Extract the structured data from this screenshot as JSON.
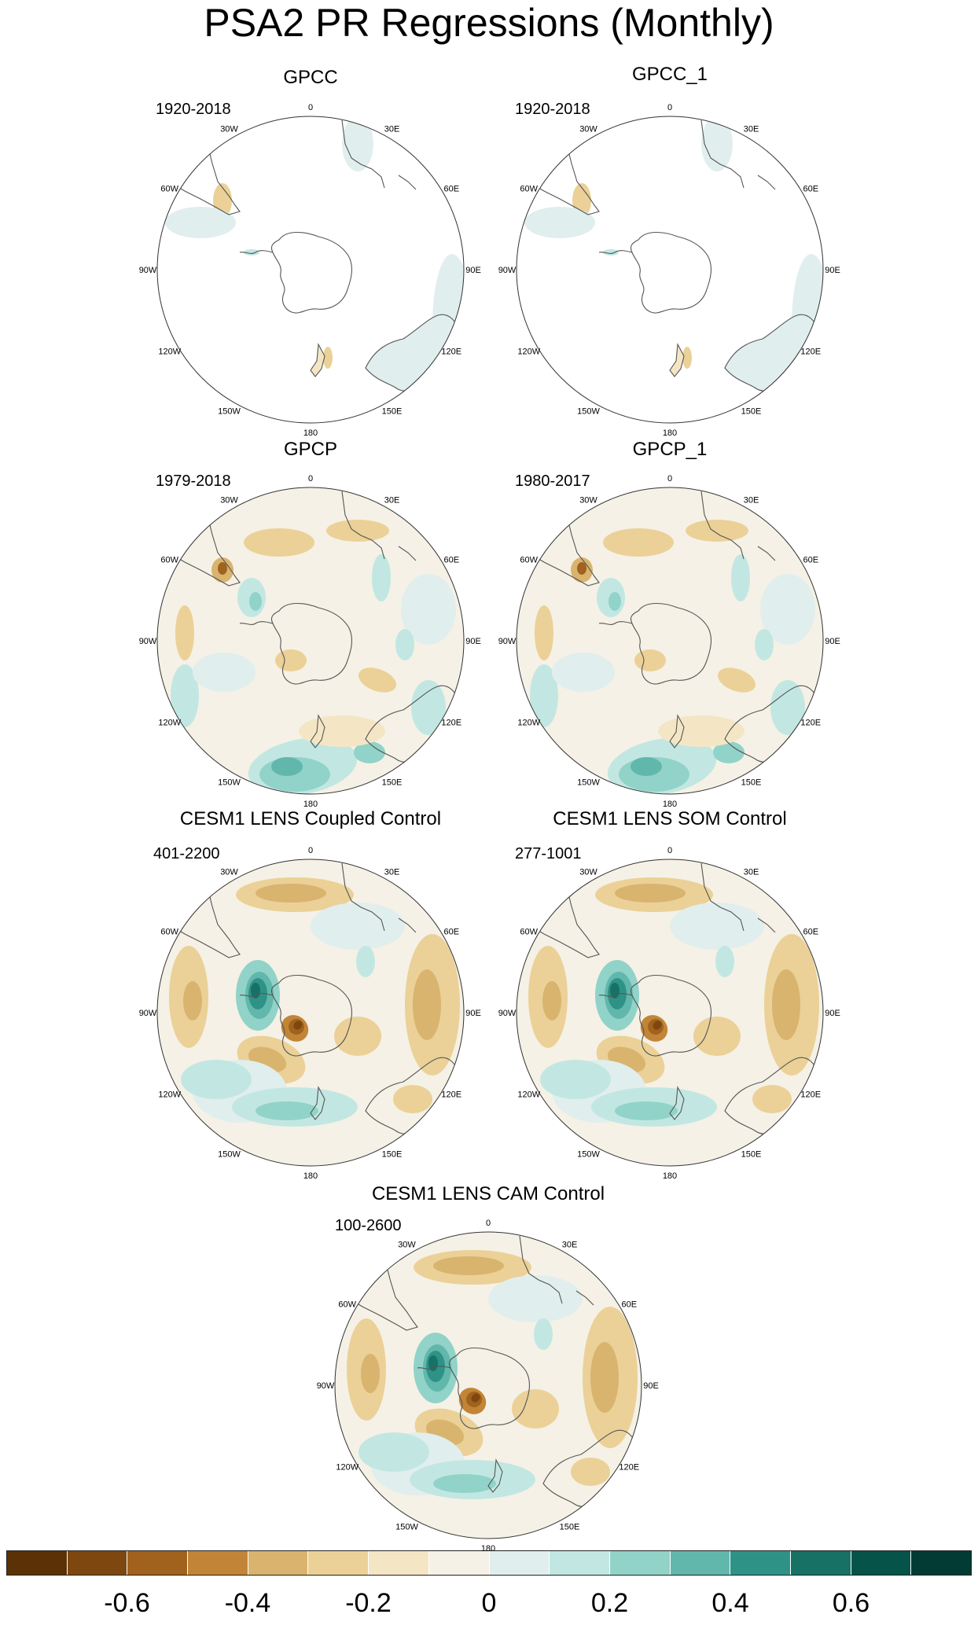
{
  "title": "PSA2 PR Regressions (Monthly)",
  "lon_labels": [
    "0",
    "30E",
    "60E",
    "90E",
    "120E",
    "150E",
    "180",
    "150W",
    "120W",
    "90W",
    "60W",
    "30W"
  ],
  "panels": [
    {
      "title": "GPCC",
      "period": "1920-2018",
      "style": "land"
    },
    {
      "title": "GPCC_1",
      "period": "1920-2018",
      "style": "land"
    },
    {
      "title": "GPCP",
      "period": "1979-2018",
      "style": "obs"
    },
    {
      "title": "GPCP_1",
      "period": "1980-2017",
      "style": "obs"
    },
    {
      "title": "CESM1 LENS Coupled Control",
      "period": "401-2200",
      "style": "model"
    },
    {
      "title": "CESM1 LENS SOM Control",
      "period": "277-1001",
      "style": "model"
    },
    {
      "title": "CESM1 LENS CAM Control",
      "period": "100-2600",
      "style": "model"
    }
  ],
  "chart_data": {
    "type": "heatmap",
    "title": "PSA2 PR Regressions (Monthly)",
    "colorbar": {
      "levels": [
        -0.7,
        -0.6,
        -0.5,
        -0.4,
        -0.3,
        -0.2,
        -0.1,
        0,
        0.1,
        0.2,
        0.3,
        0.4,
        0.5,
        0.6,
        0.7
      ],
      "tick_labels": [
        "-0.6",
        "-0.4",
        "-0.2",
        "0",
        "0.2",
        "0.4",
        "0.6"
      ],
      "tick_values": [
        -0.6,
        -0.4,
        -0.2,
        0,
        0.2,
        0.4,
        0.6
      ],
      "colors": [
        "#5b3106",
        "#7e470f",
        "#a0621c",
        "#c28537",
        "#d9b46e",
        "#ebd197",
        "#f4e6c5",
        "#f5f1e6",
        "#e1eeee",
        "#c2e7e2",
        "#91d3c8",
        "#62b7ac",
        "#2f9287",
        "#177165",
        "#06534a",
        "#013b33"
      ]
    }
  }
}
